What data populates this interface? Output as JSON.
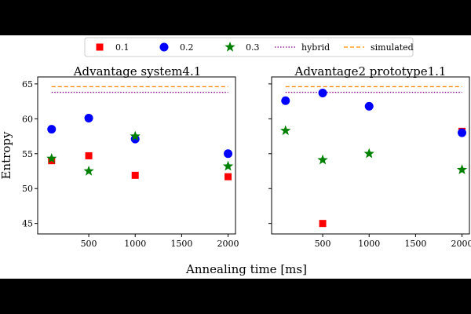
{
  "chart_data": {
    "type": "scatter",
    "xlabel": "Annealing time [ms]",
    "ylabel": "Entropy",
    "xlim": [
      -50,
      2080
    ],
    "ylim": [
      43.5,
      66
    ],
    "xticks": [
      500,
      1000,
      1500,
      2000
    ],
    "yticks": [
      45,
      50,
      55,
      60,
      65
    ],
    "grid": false,
    "legend_position": "top",
    "legend": [
      {
        "label": "0.1",
        "marker": "square",
        "color": "#ff0000"
      },
      {
        "label": "0.2",
        "marker": "circle",
        "color": "#0000ff"
      },
      {
        "label": "0.3",
        "marker": "star",
        "color": "#008000"
      },
      {
        "label": "hybrid",
        "line": "dotted",
        "color": "#800080"
      },
      {
        "label": "simulated",
        "line": "dashed",
        "color": "#ff8c00"
      }
    ],
    "panels": [
      {
        "title": "Advantage system4.1",
        "show_yticks": true,
        "series": [
          {
            "name": "0.1",
            "marker": "square",
            "color": "#ff0000",
            "x": [
              100,
              500,
              1000,
              2000
            ],
            "y": [
              54.0,
              54.7,
              51.9,
              51.7
            ]
          },
          {
            "name": "0.2",
            "marker": "circle",
            "color": "#0000ff",
            "x": [
              100,
              500,
              1000,
              2000
            ],
            "y": [
              58.5,
              60.1,
              57.1,
              55.0
            ]
          },
          {
            "name": "0.3",
            "marker": "star",
            "color": "#008000",
            "x": [
              100,
              500,
              1000,
              2000
            ],
            "y": [
              54.3,
              52.5,
              57.5,
              53.2
            ]
          }
        ],
        "hybrid": 63.8,
        "simulated": 64.6
      },
      {
        "title": "Advantage2 prototype1.1",
        "show_yticks": false,
        "series": [
          {
            "name": "0.1",
            "marker": "square",
            "color": "#ff0000",
            "x": [
              500,
              2000
            ],
            "y": [
              45.0,
              58.2
            ]
          },
          {
            "name": "0.2",
            "marker": "circle",
            "color": "#0000ff",
            "x": [
              100,
              500,
              1000,
              2000
            ],
            "y": [
              62.6,
              63.7,
              61.8,
              58.0
            ]
          },
          {
            "name": "0.3",
            "marker": "star",
            "color": "#008000",
            "x": [
              100,
              500,
              1000,
              2000
            ],
            "y": [
              58.3,
              54.1,
              55.0,
              52.7
            ]
          }
        ],
        "hybrid": 63.8,
        "simulated": 64.6
      }
    ]
  }
}
